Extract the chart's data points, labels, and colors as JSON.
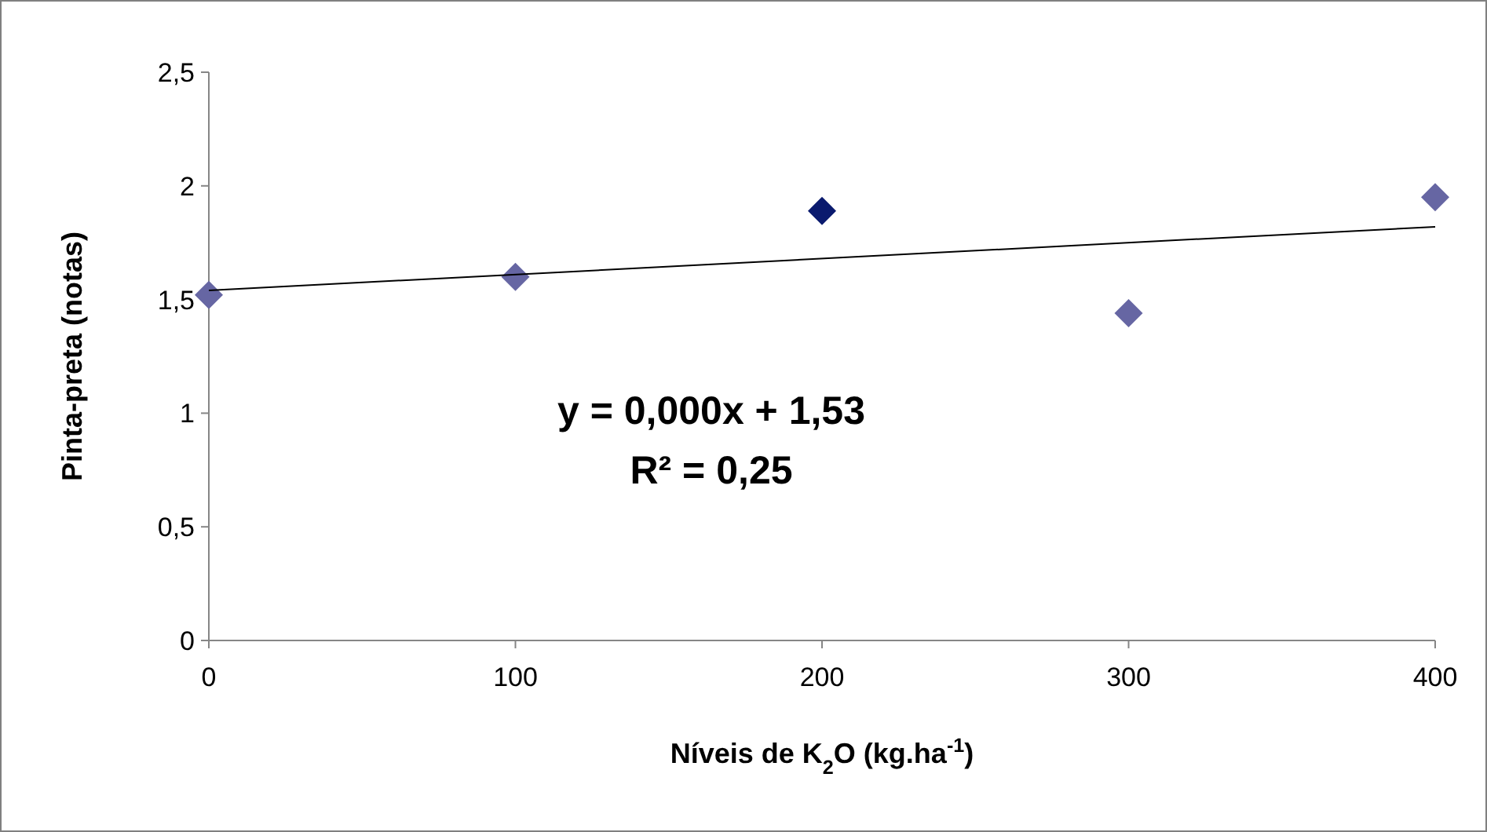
{
  "chart_data": {
    "type": "scatter",
    "xlabel": "Níveis de K$_{2}$O (kg.ha$^{-1}$)",
    "ylabel": "Pinta-preta (notas)",
    "xlim": [
      0,
      400
    ],
    "xticks": [
      0,
      100,
      200,
      300,
      400
    ],
    "ylim": [
      0,
      2.5
    ],
    "yticks": [
      0,
      {
        "value": 0.5,
        "label": "0,5"
      },
      1,
      {
        "value": 1.5,
        "label": "1,5"
      },
      2,
      {
        "value": 2.5,
        "label": "2,5"
      }
    ],
    "marker": "diamond",
    "grid": false,
    "series": [
      {
        "type": "scatter",
        "x": [
          0,
          100,
          200,
          300,
          400
        ],
        "values": [
          1.52,
          1.6,
          1.89,
          1.44,
          1.95
        ],
        "colors": [
          "#6666a3",
          "#6666a3",
          "#0a1a6e",
          "#6666a3",
          "#6666a3"
        ]
      },
      {
        "type": "line",
        "x": [
          0,
          400
        ],
        "values": [
          1.54,
          1.82
        ],
        "color": "#000000",
        "marker": "none"
      }
    ],
    "annotations": [
      "y = 0,000x + 1,53",
      "R² = 0,25"
    ]
  }
}
